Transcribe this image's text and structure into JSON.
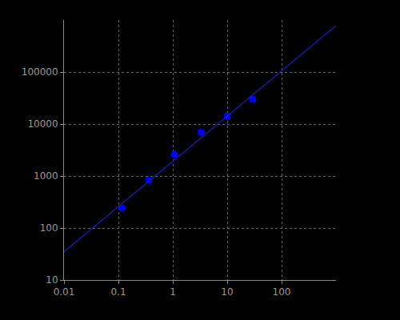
{
  "chart_data": {
    "type": "scatter",
    "log": true,
    "grid": true,
    "xlim": [
      0.01,
      1000
    ],
    "ylim": [
      10,
      1000000
    ],
    "xticks": [
      0.01,
      0.1,
      1,
      10,
      100
    ],
    "yticks": [
      10,
      100,
      1000,
      10000,
      100000
    ],
    "series": [
      {
        "type": "scatter",
        "color": "#0000ff",
        "marker": "circle",
        "x": [
          0.117,
          0.36,
          1.07,
          3.3,
          10,
          29.5
        ],
        "values": [
          243,
          835,
          2600,
          7000,
          14100,
          30000
        ]
      },
      {
        "type": "line",
        "color": "#1a1aa0",
        "line_style": "solid",
        "x": [
          0.01,
          1000
        ],
        "values": [
          35,
          780000
        ]
      }
    ]
  }
}
